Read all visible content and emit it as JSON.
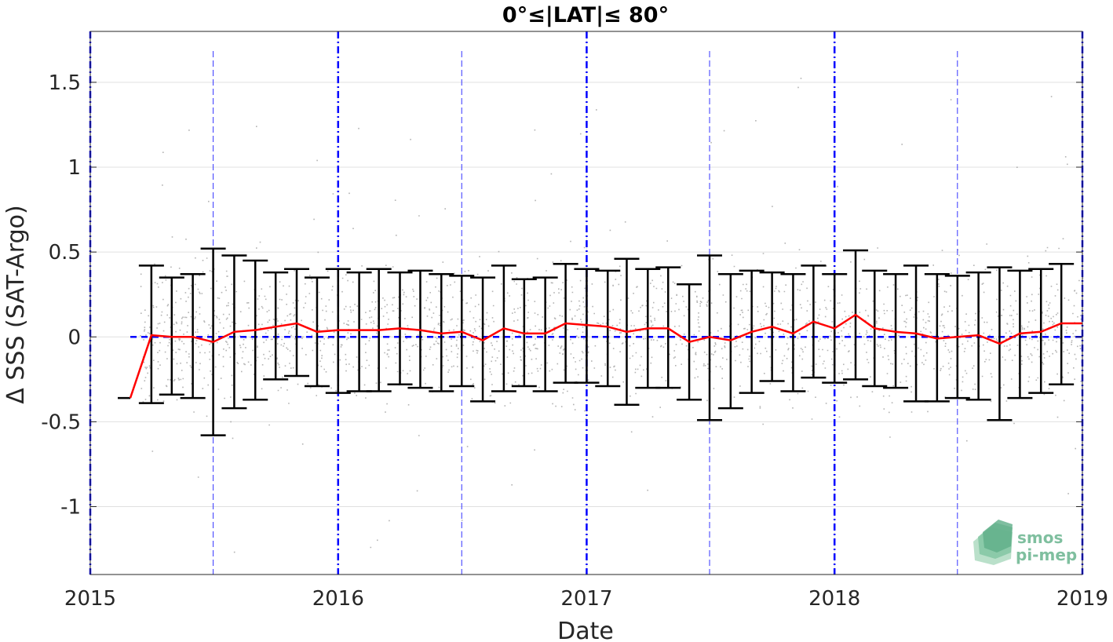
{
  "chart_data": {
    "type": "scatter",
    "title": "0°≤|LAT|≤ 80°",
    "xlabel": "Date",
    "ylabel": "Δ SSS (SAT-Argo)",
    "xlim": [
      "2015-01-01",
      "2019-01-01"
    ],
    "ylim": [
      -1.4,
      1.8
    ],
    "x_ticks": [
      "2015",
      "2016",
      "2017",
      "2018",
      "2019"
    ],
    "y_ticks": [
      -1,
      -0.5,
      0,
      0.5,
      1,
      1.5
    ],
    "y_tick_labels": [
      "-1",
      "-0.5",
      "0",
      "0.5",
      "1",
      "1.5"
    ],
    "grid": true,
    "colors": {
      "scatter": "#9a9a9a",
      "mean_line": "#ff0000",
      "errorbar": "#000000",
      "zero_line": "#0000ff",
      "year_line": "#0000ff",
      "midyear_line": "#3333ff"
    },
    "monthly_stats": {
      "dates": [
        "2015-03-01",
        "2015-04-01",
        "2015-05-01",
        "2015-06-01",
        "2015-07-01",
        "2015-08-01",
        "2015-09-01",
        "2015-10-01",
        "2015-11-01",
        "2015-12-01",
        "2016-01-01",
        "2016-02-01",
        "2016-03-01",
        "2016-04-01",
        "2016-05-01",
        "2016-06-01",
        "2016-07-01",
        "2016-08-01",
        "2016-09-01",
        "2016-10-01",
        "2016-11-01",
        "2016-12-01",
        "2017-01-01",
        "2017-02-01",
        "2017-03-01",
        "2017-04-01",
        "2017-05-01",
        "2017-06-01",
        "2017-07-01",
        "2017-08-01",
        "2017-09-01",
        "2017-10-01",
        "2017-11-01",
        "2017-12-01",
        "2018-01-01",
        "2018-02-01",
        "2018-03-01",
        "2018-04-01",
        "2018-05-01",
        "2018-06-01",
        "2018-07-01",
        "2018-08-01",
        "2018-09-01",
        "2018-10-01",
        "2018-11-01",
        "2018-12-01"
      ],
      "mean": [
        -0.36,
        0.01,
        0.0,
        0.0,
        -0.03,
        0.03,
        0.04,
        0.06,
        0.08,
        0.03,
        0.04,
        0.04,
        0.04,
        0.05,
        0.04,
        0.02,
        0.03,
        -0.02,
        0.05,
        0.02,
        0.02,
        0.08,
        0.07,
        0.06,
        0.03,
        0.05,
        0.05,
        -0.03,
        0.0,
        -0.02,
        0.03,
        0.06,
        0.02,
        0.09,
        0.05,
        0.13,
        0.05,
        0.03,
        0.02,
        -0.01,
        0.0,
        0.01,
        -0.04,
        0.02,
        0.03,
        0.08
      ],
      "upper": [
        null,
        0.42,
        0.35,
        0.37,
        0.52,
        0.48,
        0.45,
        0.38,
        0.4,
        0.35,
        0.4,
        0.38,
        0.4,
        0.38,
        0.39,
        0.37,
        0.36,
        0.35,
        0.42,
        0.34,
        0.35,
        0.43,
        0.4,
        0.39,
        0.46,
        0.4,
        0.41,
        0.31,
        0.48,
        0.37,
        0.39,
        0.38,
        0.37,
        0.42,
        0.37,
        0.51,
        0.39,
        0.37,
        0.42,
        0.37,
        0.36,
        0.38,
        0.41,
        0.39,
        0.4,
        0.43
      ],
      "lower": [
        null,
        -0.39,
        -0.34,
        -0.36,
        -0.58,
        -0.42,
        -0.37,
        -0.25,
        -0.23,
        -0.29,
        -0.33,
        -0.32,
        -0.32,
        -0.28,
        -0.3,
        -0.32,
        -0.29,
        -0.38,
        -0.32,
        -0.29,
        -0.32,
        -0.27,
        -0.27,
        -0.29,
        -0.4,
        -0.3,
        -0.3,
        -0.37,
        -0.49,
        -0.42,
        -0.33,
        -0.26,
        -0.32,
        -0.24,
        -0.27,
        -0.25,
        -0.29,
        -0.3,
        -0.38,
        -0.38,
        -0.36,
        -0.37,
        -0.49,
        -0.36,
        -0.33,
        -0.28
      ]
    },
    "scatter_density_note": ""
  },
  "logo": {
    "line1": "smos",
    "line2": "pi-mep"
  }
}
